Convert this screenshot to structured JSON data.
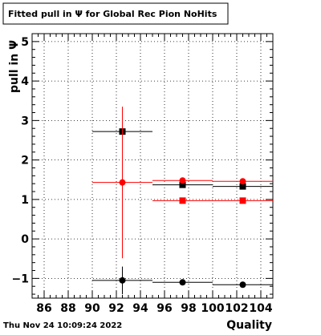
{
  "chart_data": {
    "type": "scatter",
    "title": "Fitted pull in  Ψ  for Global Rec Pion NoHits",
    "xlabel": "Quality",
    "ylabel": "pull in  Ψ",
    "timestamp": "Thu Nov 24 10:09:24 2022",
    "xlim": [
      85,
      105
    ],
    "ylim": [
      -1.5,
      5.2
    ],
    "x_ticks": [
      86,
      88,
      90,
      92,
      94,
      96,
      98,
      100,
      102,
      104
    ],
    "x_tick_labels": [
      "86",
      "88",
      "90",
      "92",
      "94",
      "96",
      "98",
      "100",
      "102",
      "104"
    ],
    "y_ticks": [
      -1,
      0,
      1,
      2,
      3,
      4,
      5
    ],
    "y_tick_labels": [
      "−1",
      "0",
      "1",
      "2",
      "3",
      "4",
      "5"
    ],
    "grid": true,
    "series": [
      {
        "color": "#000000",
        "marker": "square",
        "points": [
          {
            "x": 92.5,
            "y": 2.72,
            "xerr": 2.5,
            "yerr": 0.0
          },
          {
            "x": 97.5,
            "y": 1.37,
            "xerr": 2.5,
            "yerr": 0.0
          },
          {
            "x": 102.5,
            "y": 1.33,
            "xerr": 2.5,
            "yerr": 0.0
          }
        ]
      },
      {
        "color": "#ff0000",
        "marker": "circle",
        "points": [
          {
            "x": 92.5,
            "y": 1.43,
            "xerr": 2.5,
            "yerr": 1.92
          },
          {
            "x": 97.5,
            "y": 1.48,
            "xerr": 2.5,
            "yerr": 0.0
          },
          {
            "x": 102.5,
            "y": 1.46,
            "xerr": 2.5,
            "yerr": 0.0
          }
        ]
      },
      {
        "color": "#ff0000",
        "marker": "square",
        "points": [
          {
            "x": 97.5,
            "y": 0.97,
            "xerr": 2.5,
            "yerr": 0.0
          },
          {
            "x": 102.5,
            "y": 0.97,
            "xerr": 2.5,
            "yerr": 0.0
          }
        ]
      },
      {
        "color": "#000000",
        "marker": "circle",
        "points": [
          {
            "x": 92.5,
            "y": -1.05,
            "xerr": 2.5,
            "yerr": 0.35
          },
          {
            "x": 97.5,
            "y": -1.1,
            "xerr": 2.5,
            "yerr": 0.0
          },
          {
            "x": 102.5,
            "y": -1.16,
            "xerr": 2.5,
            "yerr": 0.0
          }
        ]
      }
    ]
  }
}
